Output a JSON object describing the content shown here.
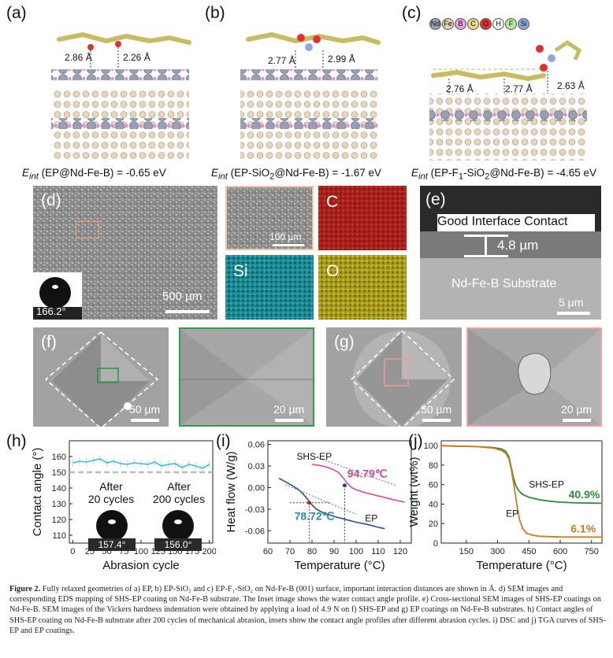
{
  "panels": {
    "a": {
      "label": "(a)",
      "dist1": "2.86 Å",
      "dist2": "2.26 Å",
      "eint_sub": "int",
      "eint_rest": " (EP@Nd-Fe-B) = -0.65 eV"
    },
    "b": {
      "label": "(b)",
      "dist1": "2.77 Å",
      "dist2": "2.99 Å",
      "eint_sub": "int",
      "eint_rest1": " (EP-SiO",
      "eint_sub2": "2",
      "eint_rest2": "@Nd-Fe-B) = -1.67 eV"
    },
    "c": {
      "label": "(c)",
      "dist1": "2.76 Å",
      "dist2": "2.77 Å",
      "dist3": "2.63 Å",
      "eint_sub": "int",
      "eint_rest1": " (EP-F",
      "eint_sub2": "1",
      "eint_rest2": "-SiO",
      "eint_sub3": "2",
      "eint_rest3": "@Nd-Fe-B) = -4.65 eV",
      "legend": [
        {
          "sym": "Nd",
          "color": "#9ea0b8"
        },
        {
          "sym": "Fe",
          "color": "#e3d1b4"
        },
        {
          "sym": "B",
          "color": "#e89ee0"
        },
        {
          "sym": "C",
          "color": "#e6dc8a"
        },
        {
          "sym": "O",
          "color": "#e03030"
        },
        {
          "sym": "H",
          "color": "#f4f4f4"
        },
        {
          "sym": "F",
          "color": "#b6e79c"
        },
        {
          "sym": "Si",
          "color": "#8aa8dc"
        }
      ]
    },
    "d": {
      "label": "(d)",
      "scale": "500 µm",
      "contact_angle": "166.2°",
      "eds": {
        "sem_scale": "100 µm",
        "c": "C",
        "si": "Si",
        "o": "O"
      }
    },
    "e": {
      "label": "(e)",
      "interface": "Good Interface Contact",
      "thickness": "4.8 µm",
      "substrate": "Nd-Fe-B Substrate",
      "scale": "5 µm"
    },
    "f": {
      "label": "(f)",
      "scale": "50 µm",
      "zoom_scale": "20 µm"
    },
    "g": {
      "label": "(g)",
      "scale": "50 µm",
      "zoom_scale": "20 µm"
    },
    "h": {
      "label": "(h)",
      "inset1": "After\n20 cycles",
      "inset2": "After\n200 cycles",
      "angle1": "157.4°",
      "angle2": "156.0°"
    },
    "i": {
      "label": "(i)",
      "label_shs": "SHS-EP",
      "label_ep": "EP",
      "tg_shs": "94.79℃",
      "tg_ep": "78.72℃"
    },
    "j": {
      "label": "(j)",
      "label_shs": "SHS-EP",
      "label_ep": "EP",
      "res_shs": "40.9%",
      "res_ep": "6.1%"
    }
  },
  "chart_data": [
    {
      "panel": "h",
      "type": "line",
      "xlabel": "Abrasion cycle",
      "ylabel": "Contact angle (°)",
      "xlim": [
        -5,
        205
      ],
      "ylim": [
        105,
        170
      ],
      "xticks": [
        0,
        25,
        50,
        75,
        100,
        125,
        150,
        175,
        200
      ],
      "yticks": [
        110,
        120,
        130,
        140,
        150,
        160
      ],
      "reference_line": 150,
      "series": [
        {
          "color": "#3fb8e3",
          "x": [
            0,
            10,
            20,
            30,
            40,
            50,
            60,
            70,
            80,
            90,
            100,
            110,
            120,
            130,
            140,
            150,
            160,
            170,
            180,
            190,
            200
          ],
          "y": [
            156,
            157,
            156.5,
            157.5,
            158.5,
            156,
            157,
            155.5,
            155,
            156,
            155.5,
            155,
            156.5,
            154,
            155,
            155.5,
            153,
            155,
            154,
            152.5,
            155
          ]
        }
      ]
    },
    {
      "panel": "i",
      "type": "line",
      "xlabel": "Temperature (°C)",
      "ylabel": "Heat flow (W/g)",
      "xlim": [
        60,
        125
      ],
      "ylim": [
        -0.077,
        0.065
      ],
      "xticks": [
        60,
        70,
        80,
        90,
        100,
        110,
        120
      ],
      "yticks": [
        -0.06,
        -0.03,
        0.0,
        0.03,
        0.06
      ],
      "series": [
        {
          "name": "SHS-EP",
          "color": "#d64a9a",
          "x": [
            80,
            83,
            86,
            89,
            92,
            94,
            96,
            98,
            100,
            104,
            108,
            112,
            116,
            120,
            122
          ],
          "y": [
            0.032,
            0.031,
            0.029,
            0.026,
            0.021,
            0.014,
            0.006,
            0.0,
            -0.003,
            -0.007,
            -0.01,
            -0.013,
            -0.016,
            -0.019,
            -0.02
          ]
        },
        {
          "name": "EP",
          "color": "#2c4f8c",
          "x": [
            65,
            68,
            71,
            74,
            76,
            78,
            80,
            82,
            85,
            90,
            95,
            100,
            105,
            110,
            113
          ],
          "y": [
            0.013,
            0.008,
            0.003,
            -0.003,
            -0.009,
            -0.016,
            -0.024,
            -0.03,
            -0.035,
            -0.04,
            -0.044,
            -0.048,
            -0.051,
            -0.055,
            -0.057
          ]
        }
      ],
      "markers": [
        {
          "x": 94.79,
          "y": 0.003
        },
        {
          "x": 78.72,
          "y": -0.021
        }
      ]
    },
    {
      "panel": "j",
      "type": "line",
      "xlabel": "Temperature (°C)",
      "ylabel": "Weight (wt%)",
      "xlim": [
        30,
        800
      ],
      "ylim": [
        0,
        105
      ],
      "xticks": [
        150,
        300,
        450,
        600,
        750
      ],
      "yticks": [
        0,
        20,
        40,
        60,
        80,
        100
      ],
      "series": [
        {
          "name": "SHS-EP",
          "color": "#2e8b3a",
          "x": [
            30,
            100,
            200,
            280,
            320,
            340,
            355,
            365,
            375,
            385,
            400,
            420,
            450,
            500,
            550,
            600,
            650,
            700,
            750,
            800
          ],
          "y": [
            100,
            99.5,
            99,
            98,
            96.5,
            94,
            88,
            78,
            68,
            60,
            54,
            50,
            47,
            44.5,
            43,
            42,
            41.5,
            41.2,
            41,
            40.9
          ]
        },
        {
          "name": "EP",
          "color": "#d07a1e",
          "x": [
            30,
            100,
            200,
            280,
            320,
            340,
            355,
            365,
            375,
            385,
            395,
            405,
            420,
            440,
            470,
            500,
            550,
            600,
            700,
            800
          ],
          "y": [
            100,
            99.5,
            99,
            97.5,
            95,
            92,
            86,
            76,
            64,
            50,
            36,
            24,
            15,
            10,
            8,
            7,
            6.6,
            6.3,
            6.2,
            6.1
          ]
        }
      ]
    }
  ],
  "caption": {
    "fig": "Figure 2.",
    "text": " Fully relaxed geometries of a) EP, b) EP-SiO₂ and c) EP-F₁-SiO₂ on Nd-Fe-B (001) surface, important interaction distances are shown in Å. d) SEM images and corresponding EDS mapping of SHS-EP coating on Nd-Fe-B substrate. The Inset image shows the water contact angle profile. e) Cross-sectional SEM images of SHS-EP coatings on Nd-Fe-B. SEM images of the Vickers hardness indentation were obtained by applying a load of 4.9 N on f) SHS-EP and g) EP coatings on Nd-Fe-B substrates. h) Contact angles of SHS-EP coating on Nd-Fe-B substrate after 200 cycles of mechanical abrasion, insets show the contact angle profiles after different abrasion cycles. i) DSC and j) TGA curves of SHS-EP and EP coatings."
  }
}
